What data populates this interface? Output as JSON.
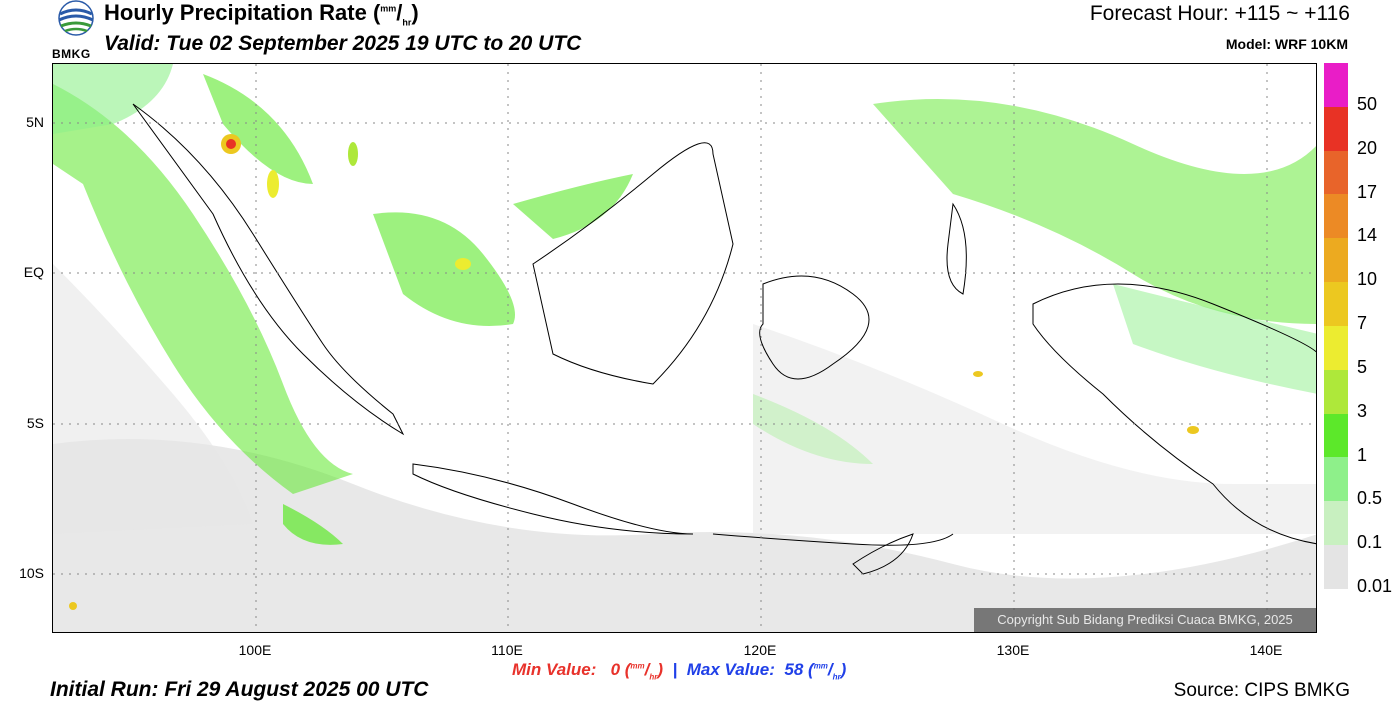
{
  "header": {
    "title_main": "Hourly Precipitation Rate (",
    "title_unit_num": "mm",
    "title_unit_sep": "/",
    "title_unit_den": "hr",
    "title_close": ")",
    "valid": "Valid: Tue 02 September 2025 19 UTC to 20 UTC",
    "forecast_hour": "Forecast Hour: +115 ~ +116",
    "model": "Model: WRF 10KM",
    "logo_text": "BMKG"
  },
  "map": {
    "lat_labels": [
      "5N",
      "EQ",
      "5S",
      "10S"
    ],
    "lon_labels": [
      "100E",
      "110E",
      "120E",
      "130E",
      "140E"
    ],
    "copyright": "Copyright Sub Bidang Prediksi Cuaca BMKG, 2025"
  },
  "colorbar": {
    "labels": [
      "50",
      "20",
      "17",
      "14",
      "10",
      "7",
      "5",
      "3",
      "1",
      "0.5",
      "0.1",
      "0.01"
    ],
    "colors": [
      "#e91dc7",
      "#e83225",
      "#e8642a",
      "#ec8a25",
      "#ecaa20",
      "#ecc820",
      "#ecec30",
      "#aee83a",
      "#5ce82a",
      "#8ef08a",
      "#c8f0c0",
      "#e4e4e4"
    ]
  },
  "stats": {
    "min_label": "Min Value:",
    "min_value": "0",
    "max_label": "Max Value:",
    "max_value": "58",
    "unit_num": "mm",
    "unit_den": "hr",
    "separator": "|"
  },
  "footer": {
    "initial_run": "Initial Run: Fri 29 August 2025 00 UTC",
    "source": "Source: CIPS BMKG"
  }
}
